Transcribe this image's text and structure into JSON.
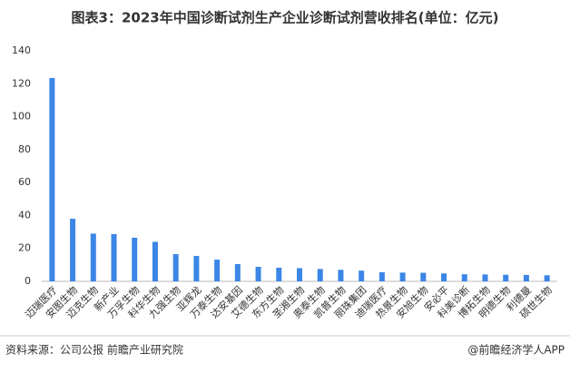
{
  "chart_data": {
    "type": "bar",
    "title": "图表3：2023年中国诊断试剂生产企业诊断试剂营收排名(单位：亿元)",
    "categories": [
      "迈瑞医疗",
      "安图生物",
      "迈克生物",
      "新产业",
      "万孚生物",
      "科华生物",
      "九强生物",
      "亚辉龙",
      "万泰生物",
      "达安基因",
      "艾德生物",
      "东方生物",
      "圣湘生物",
      "奥泰生物",
      "凯普生物",
      "丽珠集团",
      "迪瑞医疗",
      "热景生物",
      "安旭生物",
      "安必平",
      "科美诊断",
      "博拓生物",
      "明德生物",
      "利德曼",
      "硕世生物"
    ],
    "values": [
      123.5,
      38,
      29,
      28.7,
      26.5,
      24,
      16.5,
      15.4,
      13.2,
      10.5,
      8.8,
      8.3,
      8,
      7.5,
      7,
      6.5,
      5.5,
      5.3,
      5.2,
      4.8,
      4.3,
      4.2,
      4,
      3.9,
      3.7
    ],
    "color": "#3b86e6",
    "ylim": [
      0,
      140
    ],
    "yticks": [
      0,
      20,
      40,
      60,
      80,
      100,
      120,
      140
    ],
    "grid": false,
    "source": "资料来源：公司公报 前瞻产业研究院",
    "brand": "@前瞻经济学人APP"
  }
}
